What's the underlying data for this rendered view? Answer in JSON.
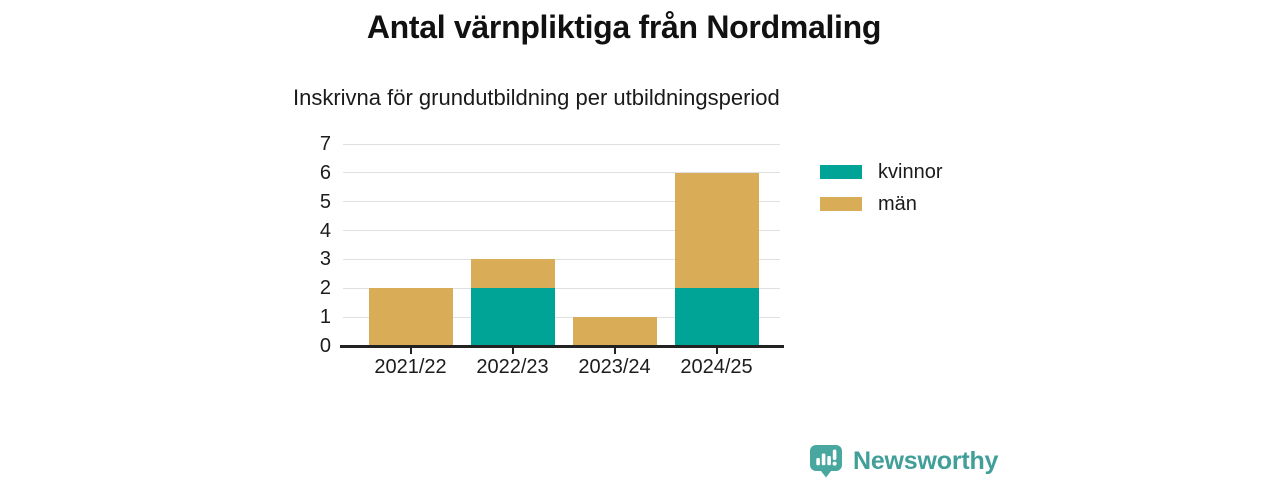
{
  "header": {
    "title": "Antal värnpliktiga från Nordmaling",
    "subtitle": "Inskrivna för grundutbildning per utbildningsperiod"
  },
  "chart_data": {
    "type": "bar",
    "stacked": true,
    "title": "Antal värnpliktiga från Nordmaling",
    "subtitle": "Inskrivna för grundutbildning per utbildningsperiod",
    "categories": [
      "2021/22",
      "2022/23",
      "2023/24",
      "2024/25"
    ],
    "series": [
      {
        "name": "kvinnor",
        "color": "#00a496",
        "values": [
          0,
          2,
          0,
          2
        ]
      },
      {
        "name": "män",
        "color": "#d9ad58",
        "values": [
          2,
          1,
          1,
          4
        ]
      }
    ],
    "totals": [
      2,
      3,
      1,
      6
    ],
    "ylim": [
      0,
      7
    ],
    "yticks": [
      0,
      1,
      2,
      3,
      4,
      5,
      6,
      7
    ],
    "grid": "horizontal",
    "legend_position": "right"
  },
  "colors": {
    "axis": "#222222",
    "grid": "#e0e0e0",
    "text": "#1a1a1a"
  },
  "branding": {
    "name": "Newsworthy",
    "icon": "newsworthy-chart-bubble-icon",
    "text_color": "#419e99",
    "icon_color": "#48a8a0"
  }
}
